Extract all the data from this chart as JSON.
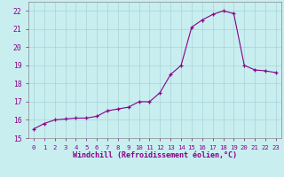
{
  "x": [
    0,
    1,
    2,
    3,
    4,
    5,
    6,
    7,
    8,
    9,
    10,
    11,
    12,
    13,
    14,
    15,
    16,
    17,
    18,
    19,
    20,
    21,
    22,
    23
  ],
  "y": [
    15.5,
    15.8,
    16.0,
    16.05,
    16.1,
    16.1,
    16.2,
    16.5,
    16.6,
    16.7,
    17.0,
    17.0,
    17.5,
    18.5,
    19.0,
    21.1,
    21.5,
    21.8,
    22.0,
    21.85,
    19.0,
    18.75,
    18.7,
    18.6
  ],
  "line_color": "#880088",
  "marker_color": "#880088",
  "bg_color": "#c8eef0",
  "grid_color": "#a8d4d8",
  "xlabel": "Windchill (Refroidissement éolien,°C)",
  "xlabel_color": "#880088",
  "ylim": [
    15,
    22.5
  ],
  "xlim": [
    -0.5,
    23.5
  ],
  "yticks": [
    15,
    16,
    17,
    18,
    19,
    20,
    21,
    22
  ],
  "xticks": [
    0,
    1,
    2,
    3,
    4,
    5,
    6,
    7,
    8,
    9,
    10,
    11,
    12,
    13,
    14,
    15,
    16,
    17,
    18,
    19,
    20,
    21,
    22,
    23
  ],
  "tick_color": "#880088",
  "font_family": "monospace"
}
